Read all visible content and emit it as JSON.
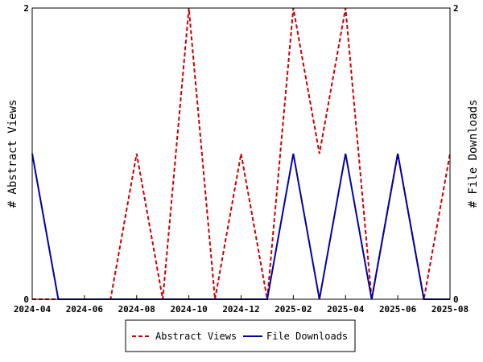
{
  "chart_data": {
    "type": "line",
    "title": "",
    "xlabel": "",
    "ylabel": "# Abstract Views",
    "y2label": "# File Downloads",
    "categories": [
      "2024-04",
      "2024-05",
      "2024-06",
      "2024-07",
      "2024-08",
      "2024-09",
      "2024-10",
      "2024-11",
      "2024-12",
      "2025-01",
      "2025-02",
      "2025-03",
      "2025-04",
      "2025-05",
      "2025-06",
      "2025-07",
      "2025-08"
    ],
    "x_tick_labels": [
      "2024-04",
      "2024-06",
      "2024-08",
      "2024-10",
      "2024-12",
      "2025-02",
      "2025-04",
      "2025-06",
      "2025-08"
    ],
    "y_tick_labels": [
      "0",
      "2"
    ],
    "y2_tick_labels": [
      "0",
      "2"
    ],
    "ylim": [
      0,
      2
    ],
    "y2lim": [
      0,
      2
    ],
    "grid": false,
    "legend_position": "bottom",
    "series": [
      {
        "name": "Abstract Views",
        "axis": "left",
        "color": "#cc0000",
        "style": "dashed",
        "values": [
          0,
          0,
          0,
          0,
          1,
          0,
          2,
          0,
          1,
          0,
          2,
          1,
          2,
          0,
          1,
          0,
          1
        ]
      },
      {
        "name": "File Downloads",
        "axis": "right",
        "color": "#0000aa",
        "style": "solid",
        "values": [
          1,
          0,
          0,
          0,
          0,
          0,
          0,
          0,
          0,
          0,
          1,
          0,
          1,
          0,
          1,
          0,
          0
        ]
      }
    ]
  }
}
